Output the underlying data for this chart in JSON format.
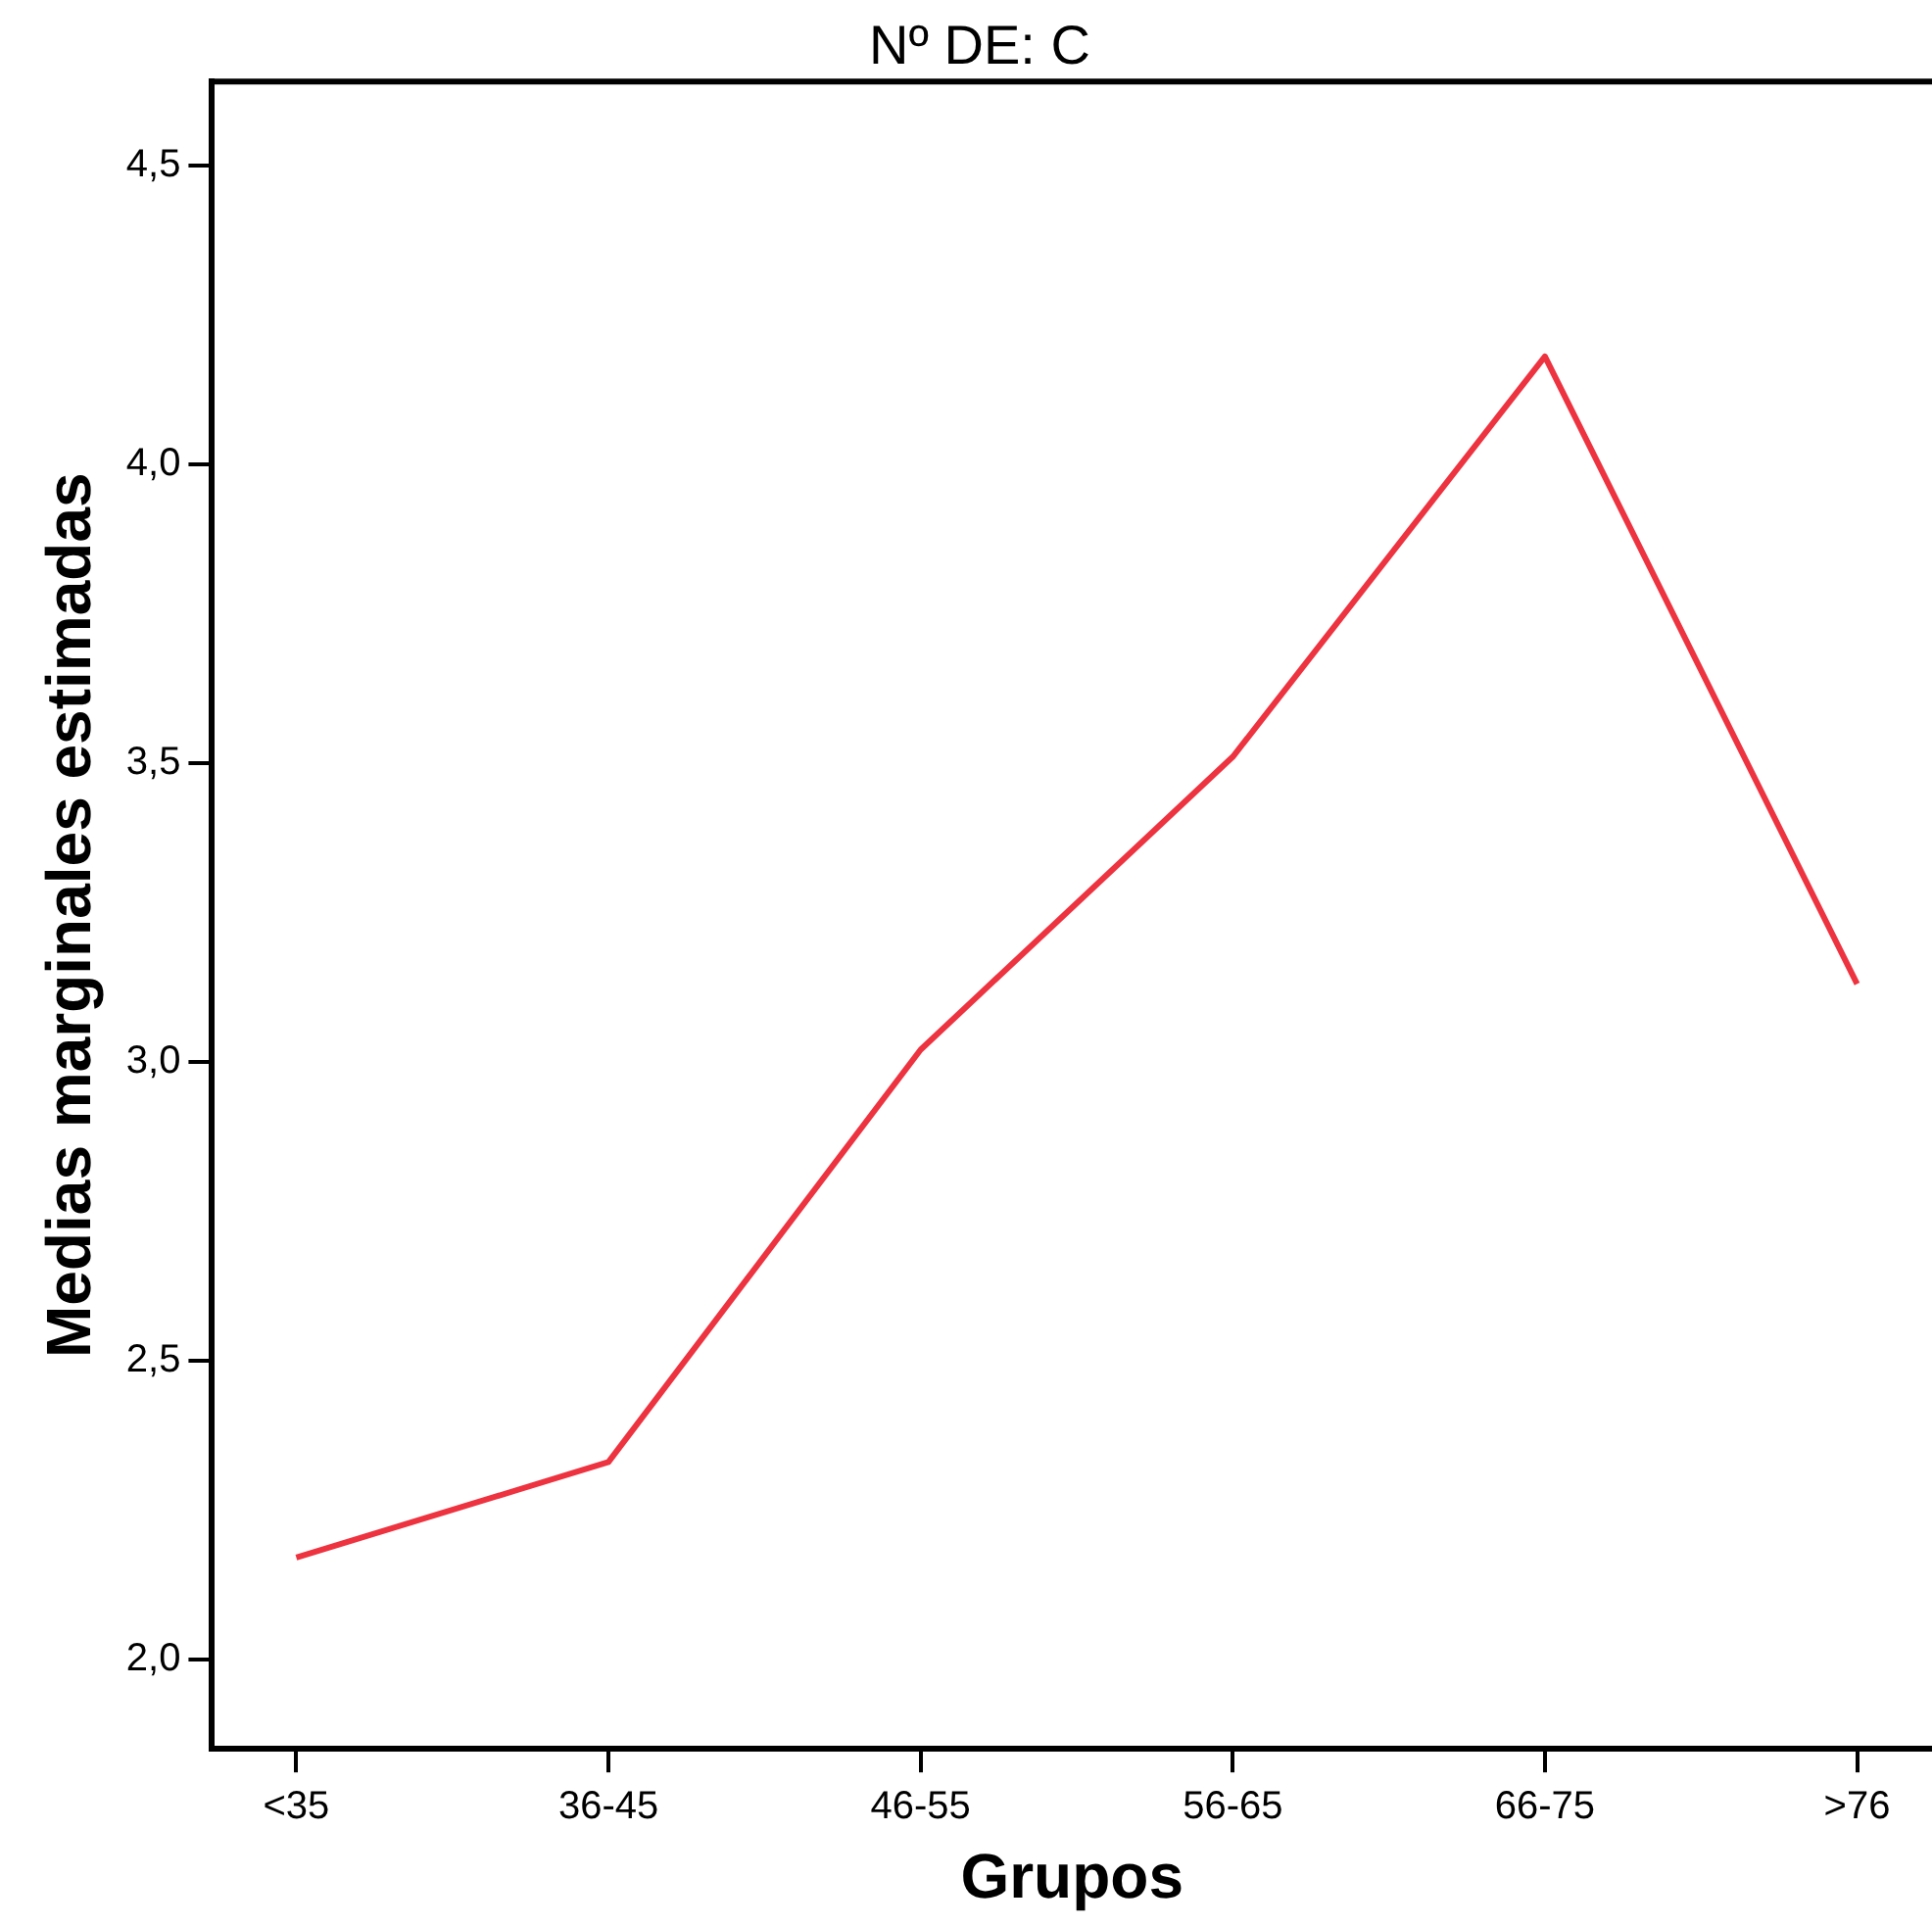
{
  "chart_data": {
    "type": "line",
    "title": "Nº DE: C",
    "xlabel": "Grupos",
    "ylabel": "Medias marginales estimadas",
    "categories": [
      "<35",
      "36-45",
      "46-55",
      "56-65",
      "66-75",
      ">76"
    ],
    "series": [
      {
        "color": "#ee3340",
        "values": [
          2.17,
          2.33,
          3.02,
          3.51,
          4.18,
          3.13
        ]
      }
    ],
    "ylim": [
      1.85,
      4.64
    ],
    "yticks": [
      {
        "value": 2,
        "label": "2,0"
      },
      {
        "value": 2.5,
        "label": "2,5"
      },
      {
        "value": 3,
        "label": "3,0"
      },
      {
        "value": 3.5,
        "label": "3,5"
      },
      {
        "value": 4,
        "label": "4,0"
      },
      {
        "value": 4.5,
        "label": "4,5"
      }
    ],
    "grid": false,
    "legend": false,
    "marker": "none",
    "line_style": "solid"
  }
}
